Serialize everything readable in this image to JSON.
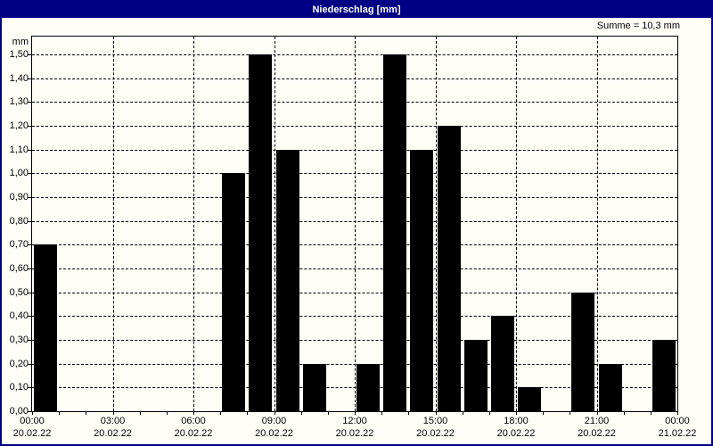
{
  "window": {
    "title": "Niederschlag [mm]"
  },
  "colors": {
    "titlebar": "#000084",
    "bar": "#000000",
    "background": "#FFFFF8",
    "grid": "#000000"
  },
  "chart_data": {
    "type": "bar",
    "title": "Niederschlag [mm]",
    "sum_label": "Summe = 10,3 mm",
    "ylabel": "mm",
    "grid": "dashed",
    "legend": "none",
    "x_unit": "hour",
    "hours": [
      0,
      1,
      2,
      3,
      4,
      5,
      6,
      7,
      8,
      9,
      10,
      11,
      12,
      13,
      14,
      15,
      16,
      17,
      18,
      19,
      20,
      21,
      22,
      23
    ],
    "values": [
      0.7,
      0,
      0,
      0,
      0,
      0,
      0,
      1.0,
      1.5,
      1.1,
      0.2,
      0,
      0.2,
      1.5,
      1.1,
      1.2,
      0.3,
      0.4,
      0.1,
      0,
      0.5,
      0.2,
      0,
      0.3
    ],
    "total": 10.3,
    "ylim": [
      0,
      1.575
    ],
    "ytick_step": 0.1,
    "ytick_values": [
      0,
      0.1,
      0.2,
      0.3,
      0.4,
      0.5,
      0.6,
      0.7,
      0.8,
      0.9,
      1.0,
      1.1,
      1.2,
      1.3,
      1.4,
      1.5
    ],
    "ytick_labels": [
      "0,00",
      "0,10",
      "0,20",
      "0,30",
      "0,40",
      "0,50",
      "0,60",
      "0,70",
      "0,80",
      "0,90",
      "1,00",
      "1,10",
      "1,20",
      "1,30",
      "1,40",
      "1,50"
    ],
    "xlim_hours": [
      0,
      24
    ],
    "x_major_interval_hours": 3,
    "x_minor_tick_interval_hours": 1,
    "xticks": [
      {
        "hour": 0,
        "time": "00:00",
        "date": "20.02.22"
      },
      {
        "hour": 3,
        "time": "03:00",
        "date": "20.02.22"
      },
      {
        "hour": 6,
        "time": "06:00",
        "date": "20.02.22"
      },
      {
        "hour": 9,
        "time": "09:00",
        "date": "20.02.22"
      },
      {
        "hour": 12,
        "time": "12:00",
        "date": "20.02.22"
      },
      {
        "hour": 15,
        "time": "15:00",
        "date": "20.02.22"
      },
      {
        "hour": 18,
        "time": "18:00",
        "date": "20.02.22"
      },
      {
        "hour": 21,
        "time": "21:00",
        "date": "20.02.22"
      },
      {
        "hour": 24,
        "time": "00:00",
        "date": "21.02.22"
      }
    ]
  }
}
